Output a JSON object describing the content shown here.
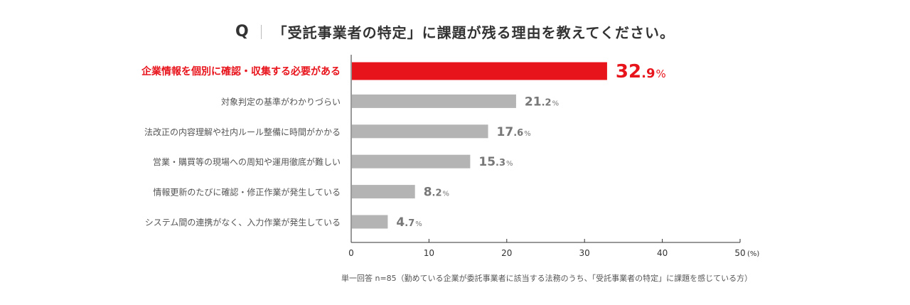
{
  "question": {
    "mark": "Q",
    "text": "「受託事業者の特定」に課題が残る理由を教えてください。"
  },
  "chart_data": {
    "type": "bar",
    "orientation": "horizontal",
    "categories": [
      "企業情報を個別に確認・収集する必要がある",
      "対象判定の基準がわかりづらい",
      "法改正の内容理解や社内ルール整備に時間がかかる",
      "営業・購買等の現場への周知や運用徹底が難しい",
      "情報更新のたびに確認・修正作業が発生している",
      "システム間の連携がなく、入力作業が発生している"
    ],
    "values": [
      32.9,
      21.2,
      17.6,
      15.3,
      8.2,
      4.7
    ],
    "value_labels": [
      "32.9",
      "21.2",
      "17.6",
      "15.3",
      "8.2",
      "4.7"
    ],
    "value_unit": "%",
    "x_ticks": [
      "0",
      "10",
      "20",
      "30",
      "40",
      "50"
    ],
    "x_unit_label": "(%)",
    "xlim": [
      0,
      50
    ],
    "highlight_index": 0,
    "colors": {
      "highlight": "#e8141c",
      "bar": "#b4b4b4",
      "label": "#555555",
      "value": "#777777",
      "axis": "#333333"
    }
  },
  "footnote": "単一回答 n=85（勤めている企業が委託事業者に該当する法務のうち、「受託事業者の特定」に課題を感じている方）"
}
